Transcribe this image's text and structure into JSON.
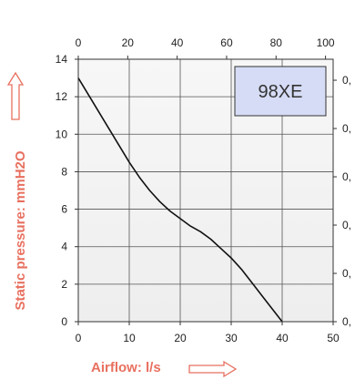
{
  "chart_data": {
    "type": "line",
    "title": "",
    "legend_label": "98XE",
    "legend_fill": "#d6dcf5",
    "line_color": "#111111",
    "accent_color": "#e8705f",
    "grid": true,
    "xlabel": "Airflow: l/s",
    "ylabel": "Static pressure: mmH2O",
    "xlim": [
      0,
      50
    ],
    "ylim": [
      0,
      14
    ],
    "x_ticks": [
      "0",
      "10",
      "20",
      "30",
      "40",
      "50"
    ],
    "y_ticks": [
      "0",
      "2",
      "4",
      "6",
      "8",
      "10",
      "12",
      "14"
    ],
    "top_x_ticks": [
      "0",
      "20",
      "40",
      "60",
      "80",
      "100"
    ],
    "right_y_ticks": [
      "0,",
      "0,",
      "0,",
      "0,",
      "0,",
      "0,"
    ],
    "series": [
      {
        "x": [
          0,
          2,
          4,
          6,
          8,
          10,
          12,
          14,
          16,
          18,
          20,
          22,
          24,
          26,
          28,
          30,
          32,
          34,
          36,
          38,
          40
        ],
        "y": [
          13.0,
          12.1,
          11.2,
          10.3,
          9.4,
          8.5,
          7.7,
          7.0,
          6.4,
          5.9,
          5.5,
          5.1,
          4.8,
          4.4,
          3.9,
          3.4,
          2.8,
          2.1,
          1.4,
          0.7,
          0.0
        ]
      }
    ]
  }
}
